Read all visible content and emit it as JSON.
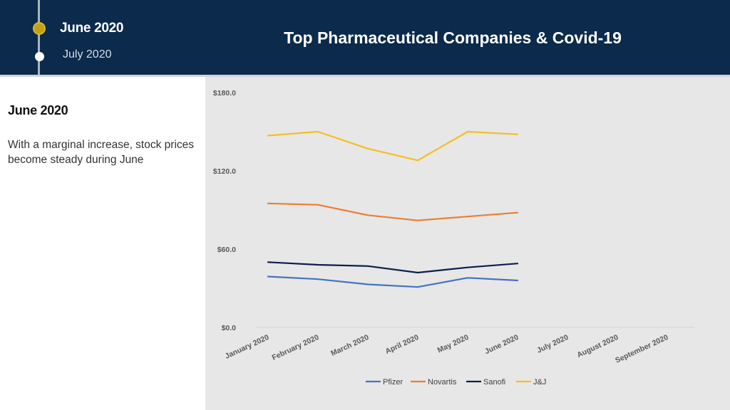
{
  "timeline": {
    "active": "June 2020",
    "inactive": "July 2020"
  },
  "header": {
    "title": "Top Pharmaceutical Companies & Covid-19"
  },
  "panel": {
    "heading": "June 2020",
    "text": "With a marginal increase, stock prices become steady during June"
  },
  "colors": {
    "header_bg": "#0b2a4c",
    "timeline_dot_active": "#c4a018",
    "chart_bg": "#e7e7e7"
  },
  "chart_data": {
    "type": "line",
    "title": "",
    "xlabel": "",
    "ylabel": "",
    "ylim": [
      0,
      180
    ],
    "yticks": [
      0,
      60,
      120,
      180
    ],
    "ytick_labels": [
      "$0.0",
      "$60.0",
      "$120.0",
      "$180.0"
    ],
    "categories": [
      "January 2020",
      "February 2020",
      "March 2020",
      "April 2020",
      "May 2020",
      "June 2020",
      "July 2020",
      "August 2020",
      "September 2020"
    ],
    "grid": false,
    "legend_position": "bottom",
    "series": [
      {
        "name": "Pfizer",
        "color": "#4472c4",
        "values": [
          39,
          37,
          33,
          31,
          38,
          36,
          null,
          null,
          null
        ]
      },
      {
        "name": "Novartis",
        "color": "#ed7d31",
        "values": [
          95,
          94,
          86,
          82,
          85,
          88,
          null,
          null,
          null
        ]
      },
      {
        "name": "Sanofi",
        "color": "#0b1f4d",
        "values": [
          50,
          48,
          47,
          42,
          46,
          49,
          null,
          null,
          null
        ]
      },
      {
        "name": "J&J",
        "color": "#f5bf1e",
        "values": [
          147,
          150,
          137,
          128,
          150,
          148,
          null,
          null,
          null
        ]
      }
    ]
  }
}
